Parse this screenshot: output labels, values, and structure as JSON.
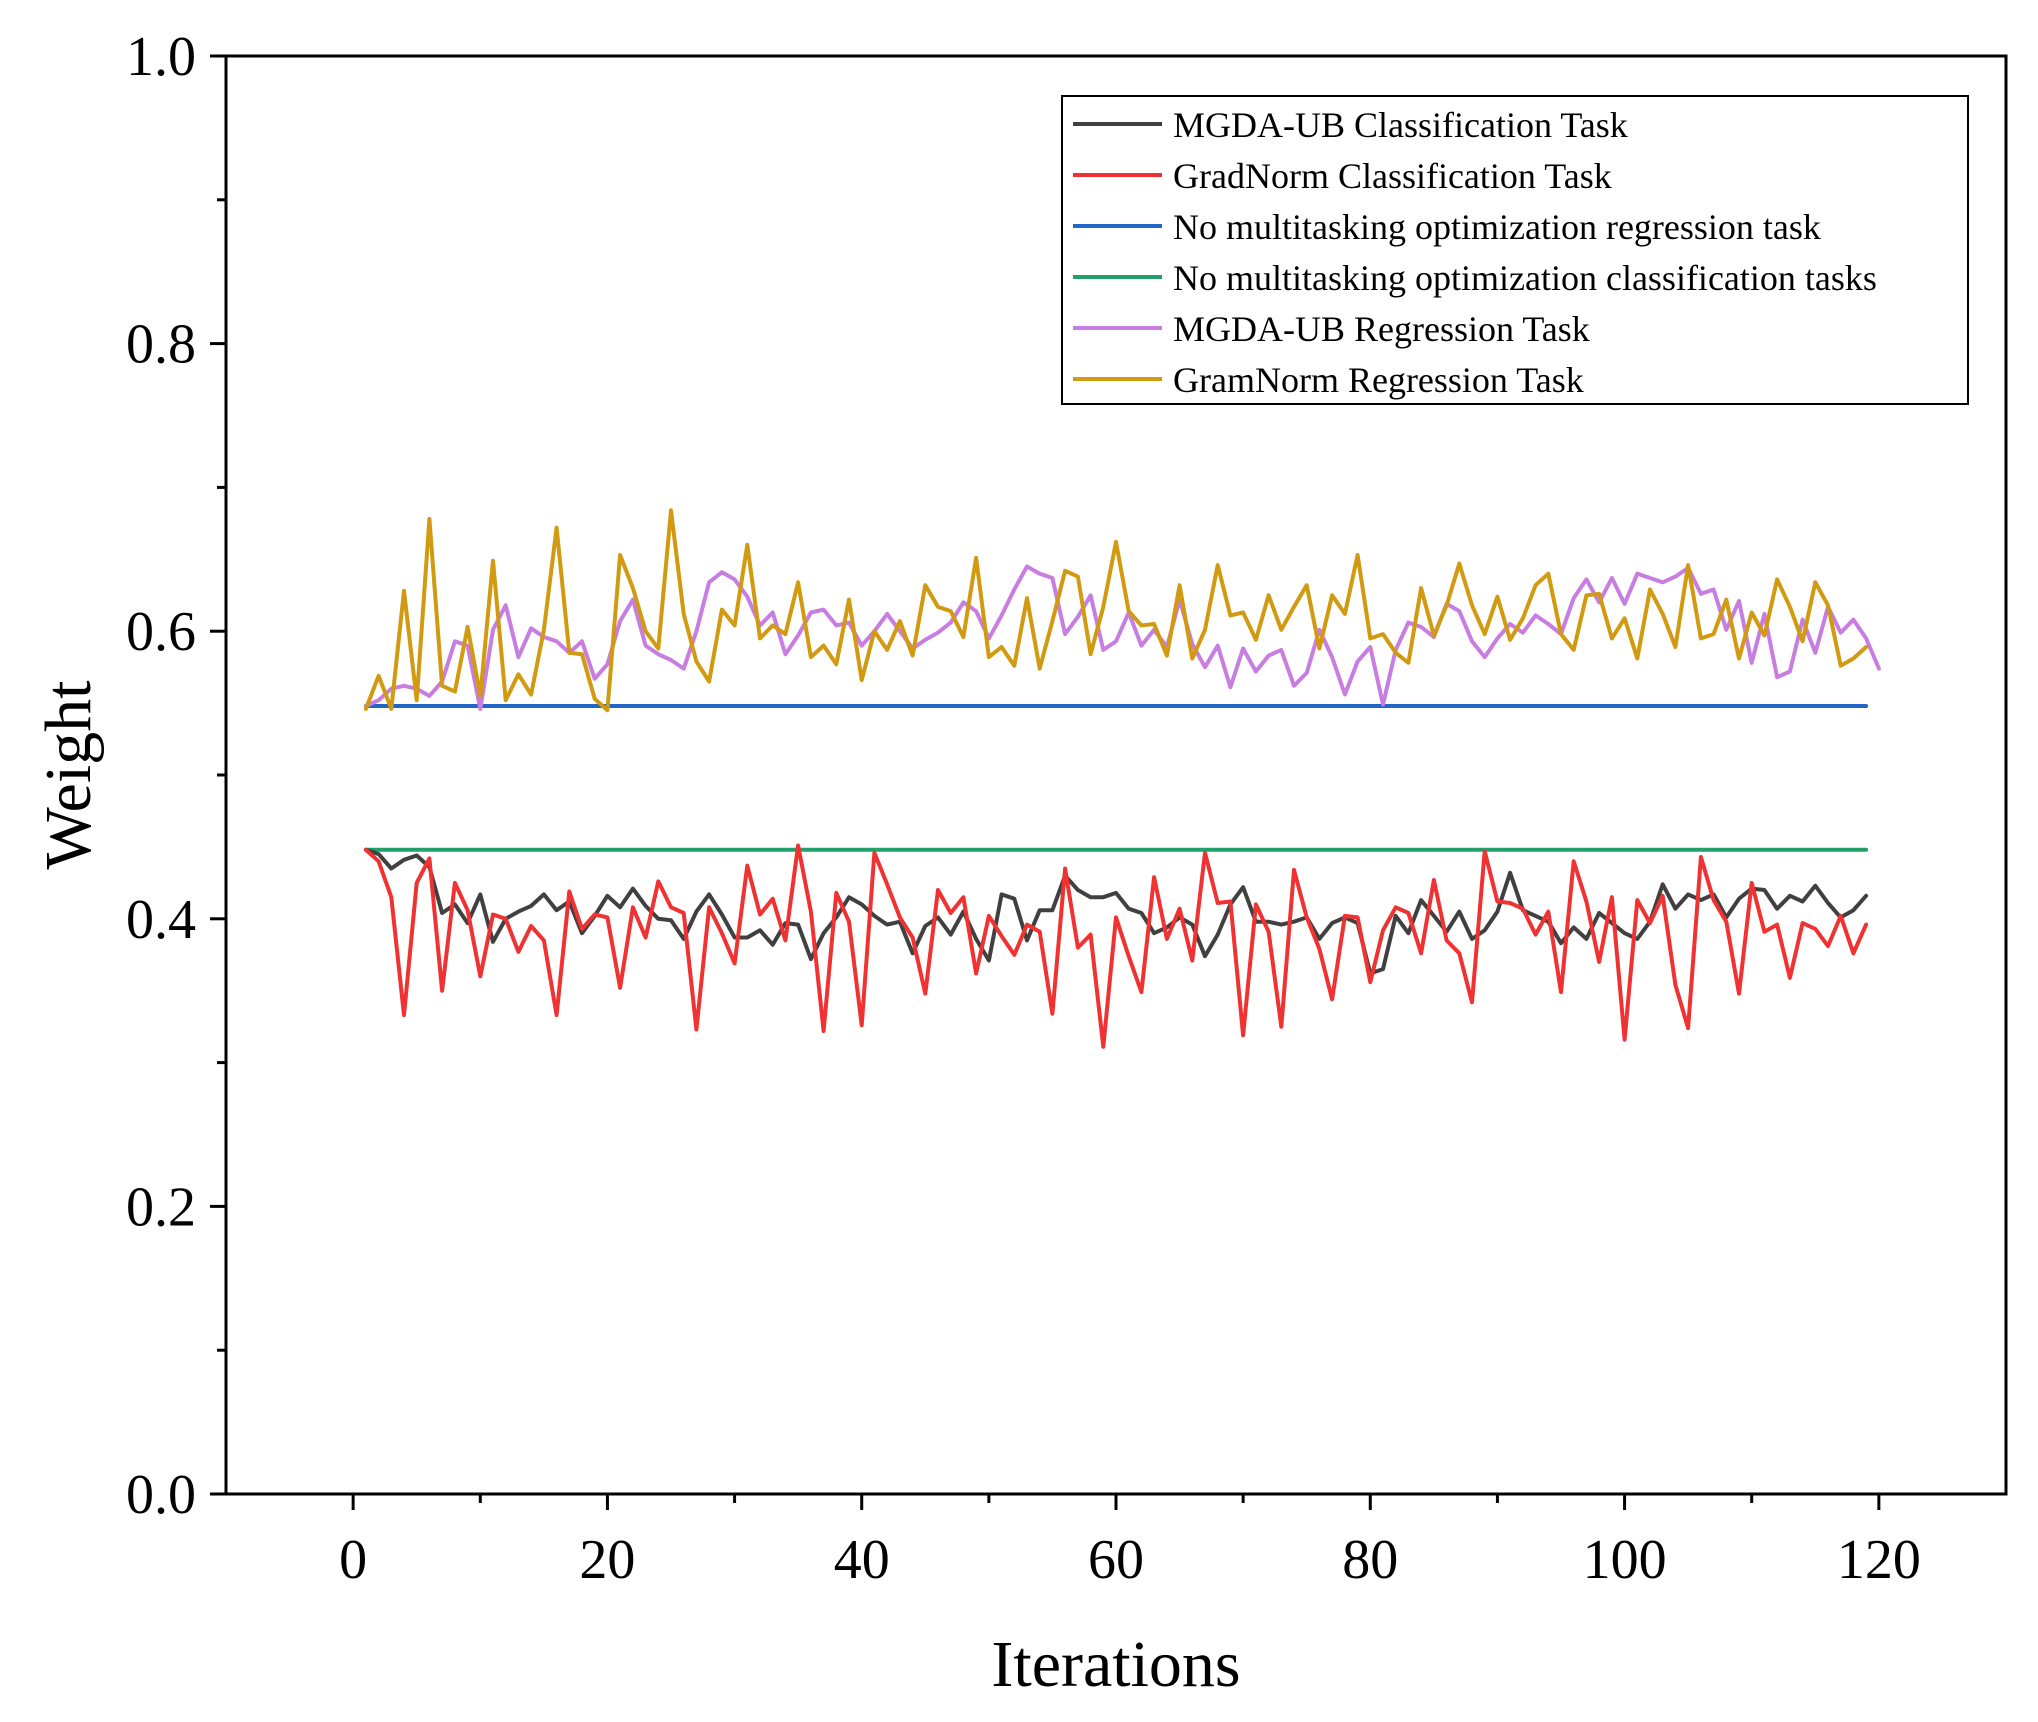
{
  "chart_data": {
    "type": "line",
    "title": "",
    "xlabel": "Iterations",
    "ylabel": "Weight",
    "xlim": [
      -10,
      130
    ],
    "ylim": [
      0.0,
      1.0
    ],
    "xticks": [
      0,
      20,
      40,
      60,
      80,
      100,
      120
    ],
    "xtick_labels": [
      "0",
      "20",
      "40",
      "60",
      "80",
      "100",
      "120"
    ],
    "yticks": [
      0.0,
      0.2,
      0.4,
      0.6,
      0.8,
      1.0
    ],
    "ytick_labels": [
      "0.0",
      "0.2",
      "0.4",
      "0.6",
      "0.8",
      "1.0"
    ],
    "grid": false,
    "legend_position": "top-right",
    "x_start": 1,
    "series": [
      {
        "name": "MGDA-UB Classification Task",
        "color": "#404040",
        "values": [
          0.448,
          0.445,
          0.435,
          0.441,
          0.444,
          0.436,
          0.404,
          0.41,
          0.397,
          0.417,
          0.384,
          0.4,
          0.405,
          0.409,
          0.417,
          0.406,
          0.412,
          0.39,
          0.402,
          0.416,
          0.408,
          0.421,
          0.409,
          0.4,
          0.399,
          0.386,
          0.405,
          0.417,
          0.403,
          0.387,
          0.387,
          0.392,
          0.382,
          0.397,
          0.396,
          0.372,
          0.39,
          0.401,
          0.415,
          0.41,
          0.402,
          0.396,
          0.398,
          0.376,
          0.395,
          0.401,
          0.389,
          0.405,
          0.386,
          0.371,
          0.417,
          0.414,
          0.385,
          0.406,
          0.406,
          0.43,
          0.42,
          0.415,
          0.415,
          0.418,
          0.407,
          0.404,
          0.39,
          0.394,
          0.401,
          0.396,
          0.374,
          0.389,
          0.41,
          0.422,
          0.398,
          0.398,
          0.396,
          0.398,
          0.401,
          0.386,
          0.397,
          0.401,
          0.397,
          0.362,
          0.365,
          0.402,
          0.39,
          0.413,
          0.402,
          0.391,
          0.405,
          0.386,
          0.392,
          0.405,
          0.432,
          0.406,
          0.402,
          0.398,
          0.383,
          0.394,
          0.386,
          0.404,
          0.397,
          0.39,
          0.386,
          0.398,
          0.424,
          0.407,
          0.417,
          0.413,
          0.417,
          0.401,
          0.414,
          0.421,
          0.42,
          0.407,
          0.416,
          0.412,
          0.423,
          0.411,
          0.401,
          0.406,
          0.416
        ]
      },
      {
        "name": "GradNorm Classification Task",
        "color": "#f03232",
        "values": [
          0.448,
          0.44,
          0.415,
          0.333,
          0.425,
          0.442,
          0.35,
          0.425,
          0.406,
          0.36,
          0.403,
          0.4,
          0.377,
          0.395,
          0.385,
          0.333,
          0.419,
          0.393,
          0.403,
          0.401,
          0.352,
          0.408,
          0.387,
          0.426,
          0.408,
          0.404,
          0.323,
          0.408,
          0.39,
          0.369,
          0.437,
          0.403,
          0.414,
          0.385,
          0.451,
          0.405,
          0.322,
          0.418,
          0.398,
          0.326,
          0.446,
          0.424,
          0.401,
          0.387,
          0.348,
          0.42,
          0.404,
          0.415,
          0.362,
          0.402,
          0.388,
          0.375,
          0.396,
          0.391,
          0.334,
          0.435,
          0.38,
          0.389,
          0.311,
          0.401,
          0.374,
          0.349,
          0.429,
          0.386,
          0.407,
          0.371,
          0.446,
          0.411,
          0.412,
          0.319,
          0.41,
          0.391,
          0.325,
          0.434,
          0.401,
          0.379,
          0.344,
          0.402,
          0.401,
          0.356,
          0.392,
          0.408,
          0.404,
          0.376,
          0.427,
          0.385,
          0.376,
          0.342,
          0.447,
          0.412,
          0.411,
          0.407,
          0.389,
          0.405,
          0.349,
          0.44,
          0.412,
          0.37,
          0.415,
          0.316,
          0.413,
          0.397,
          0.416,
          0.354,
          0.324,
          0.443,
          0.413,
          0.398,
          0.348,
          0.425,
          0.391,
          0.396,
          0.359,
          0.397,
          0.393,
          0.381,
          0.402,
          0.376,
          0.396
        ]
      },
      {
        "name": "No multitasking optimization regression task",
        "color": "#1f66c8",
        "values": [
          0.548,
          0.548,
          0.548,
          0.548,
          0.548,
          0.548,
          0.548,
          0.548,
          0.548,
          0.548,
          0.548,
          0.548,
          0.548,
          0.548,
          0.548,
          0.548,
          0.548,
          0.548,
          0.548,
          0.548,
          0.548,
          0.548,
          0.548,
          0.548,
          0.548,
          0.548,
          0.548,
          0.548,
          0.548,
          0.548,
          0.548,
          0.548,
          0.548,
          0.548,
          0.548,
          0.548,
          0.548,
          0.548,
          0.548,
          0.548,
          0.548,
          0.548,
          0.548,
          0.548,
          0.548,
          0.548,
          0.548,
          0.548,
          0.548,
          0.548,
          0.548,
          0.548,
          0.548,
          0.548,
          0.548,
          0.548,
          0.548,
          0.548,
          0.548,
          0.548,
          0.548,
          0.548,
          0.548,
          0.548,
          0.548,
          0.548,
          0.548,
          0.548,
          0.548,
          0.548,
          0.548,
          0.548,
          0.548,
          0.548,
          0.548,
          0.548,
          0.548,
          0.548,
          0.548,
          0.548,
          0.548,
          0.548,
          0.548,
          0.548,
          0.548,
          0.548,
          0.548,
          0.548,
          0.548,
          0.548,
          0.548,
          0.548,
          0.548,
          0.548,
          0.548,
          0.548,
          0.548,
          0.548,
          0.548,
          0.548,
          0.548,
          0.548,
          0.548,
          0.548,
          0.548,
          0.548,
          0.548,
          0.548,
          0.548,
          0.548,
          0.548,
          0.548,
          0.548,
          0.548,
          0.548,
          0.548,
          0.548,
          0.548,
          0.548
        ]
      },
      {
        "name": "No multitasking optimization classification tasks",
        "color": "#22a06b",
        "values": [
          0.448,
          0.448,
          0.448,
          0.448,
          0.448,
          0.448,
          0.448,
          0.448,
          0.448,
          0.448,
          0.448,
          0.448,
          0.448,
          0.448,
          0.448,
          0.448,
          0.448,
          0.448,
          0.448,
          0.448,
          0.448,
          0.448,
          0.448,
          0.448,
          0.448,
          0.448,
          0.448,
          0.448,
          0.448,
          0.448,
          0.448,
          0.448,
          0.448,
          0.448,
          0.448,
          0.448,
          0.448,
          0.448,
          0.448,
          0.448,
          0.448,
          0.448,
          0.448,
          0.448,
          0.448,
          0.448,
          0.448,
          0.448,
          0.448,
          0.448,
          0.448,
          0.448,
          0.448,
          0.448,
          0.448,
          0.448,
          0.448,
          0.448,
          0.448,
          0.448,
          0.448,
          0.448,
          0.448,
          0.448,
          0.448,
          0.448,
          0.448,
          0.448,
          0.448,
          0.448,
          0.448,
          0.448,
          0.448,
          0.448,
          0.448,
          0.448,
          0.448,
          0.448,
          0.448,
          0.448,
          0.448,
          0.448,
          0.448,
          0.448,
          0.448,
          0.448,
          0.448,
          0.448,
          0.448,
          0.448,
          0.448,
          0.448,
          0.448,
          0.448,
          0.448,
          0.448,
          0.448,
          0.448,
          0.448,
          0.448,
          0.448,
          0.448,
          0.448,
          0.448,
          0.448,
          0.448,
          0.448,
          0.448,
          0.448,
          0.448,
          0.448,
          0.448,
          0.448,
          0.448,
          0.448,
          0.448,
          0.448,
          0.448,
          0.448
        ]
      },
      {
        "name": "MGDA-UB Regression Task",
        "color": "#c77ee0",
        "values": [
          0.548,
          0.552,
          0.56,
          0.562,
          0.56,
          0.555,
          0.565,
          0.593,
          0.59,
          0.546,
          0.601,
          0.618,
          0.582,
          0.602,
          0.596,
          0.593,
          0.585,
          0.593,
          0.567,
          0.577,
          0.607,
          0.622,
          0.59,
          0.584,
          0.58,
          0.574,
          0.6,
          0.634,
          0.641,
          0.636,
          0.624,
          0.604,
          0.613,
          0.584,
          0.597,
          0.613,
          0.615,
          0.604,
          0.606,
          0.59,
          0.6,
          0.612,
          0.6,
          0.588,
          0.594,
          0.599,
          0.606,
          0.62,
          0.614,
          0.595,
          0.611,
          0.629,
          0.645,
          0.64,
          0.637,
          0.598,
          0.61,
          0.625,
          0.587,
          0.593,
          0.613,
          0.59,
          0.601,
          0.589,
          0.622,
          0.591,
          0.575,
          0.59,
          0.561,
          0.588,
          0.572,
          0.583,
          0.587,
          0.562,
          0.571,
          0.601,
          0.582,
          0.556,
          0.579,
          0.589,
          0.549,
          0.587,
          0.606,
          0.603,
          0.596,
          0.619,
          0.614,
          0.593,
          0.582,
          0.595,
          0.605,
          0.599,
          0.611,
          0.605,
          0.598,
          0.623,
          0.636,
          0.62,
          0.637,
          0.619,
          0.64,
          0.637,
          0.634,
          0.638,
          0.644,
          0.626,
          0.629,
          0.601,
          0.621,
          0.578,
          0.612,
          0.568,
          0.572,
          0.608,
          0.585,
          0.617,
          0.599,
          0.608,
          0.595,
          0.574
        ]
      },
      {
        "name": "GramNorm Regression Task",
        "color": "#d19a10",
        "values": [
          0.546,
          0.569,
          0.546,
          0.628,
          0.552,
          0.678,
          0.562,
          0.558,
          0.603,
          0.555,
          0.649,
          0.552,
          0.57,
          0.556,
          0.601,
          0.672,
          0.585,
          0.584,
          0.553,
          0.545,
          0.653,
          0.63,
          0.6,
          0.588,
          0.684,
          0.612,
          0.579,
          0.565,
          0.615,
          0.604,
          0.66,
          0.595,
          0.604,
          0.598,
          0.634,
          0.582,
          0.59,
          0.577,
          0.622,
          0.566,
          0.6,
          0.587,
          0.607,
          0.583,
          0.632,
          0.617,
          0.614,
          0.596,
          0.651,
          0.582,
          0.589,
          0.576,
          0.623,
          0.574,
          0.607,
          0.642,
          0.638,
          0.584,
          0.617,
          0.662,
          0.614,
          0.604,
          0.605,
          0.583,
          0.632,
          0.581,
          0.601,
          0.646,
          0.611,
          0.613,
          0.594,
          0.625,
          0.601,
          0.617,
          0.632,
          0.588,
          0.625,
          0.612,
          0.653,
          0.595,
          0.598,
          0.585,
          0.578,
          0.63,
          0.597,
          0.618,
          0.647,
          0.618,
          0.598,
          0.624,
          0.594,
          0.609,
          0.632,
          0.64,
          0.598,
          0.587,
          0.625,
          0.626,
          0.595,
          0.609,
          0.581,
          0.629,
          0.612,
          0.589,
          0.646,
          0.595,
          0.598,
          0.622,
          0.581,
          0.613,
          0.597,
          0.636,
          0.617,
          0.593,
          0.634,
          0.618,
          0.576,
          0.581,
          0.589
        ]
      }
    ]
  }
}
